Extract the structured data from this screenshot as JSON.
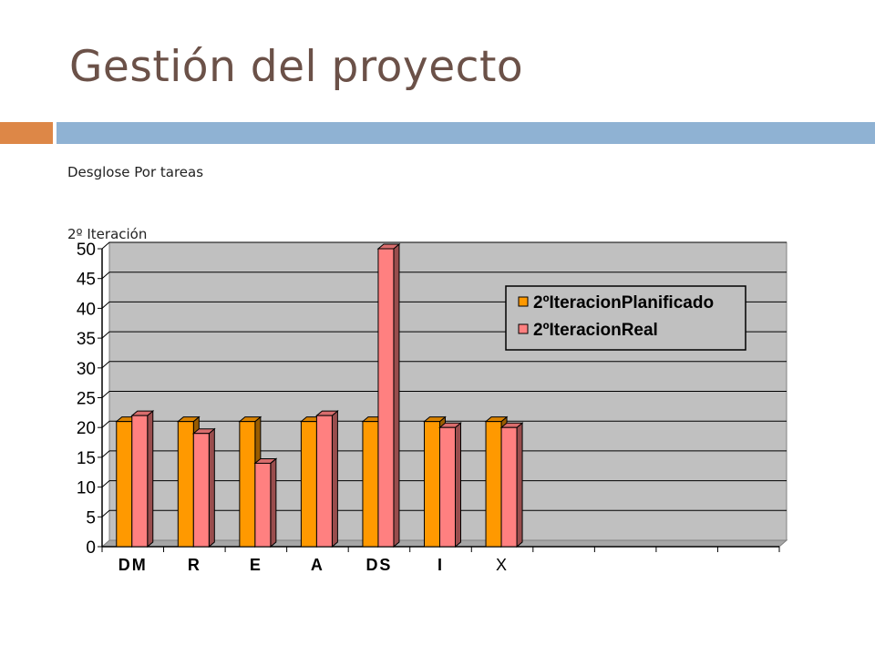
{
  "slide": {
    "title": "Gestión del proyecto",
    "subtitle": "Desglose Por tareas",
    "chart_caption": "2º Iteración"
  },
  "colors": {
    "title": "#6b5148",
    "accent_orange": "#dd8747",
    "accent_blue": "#8fb2d3",
    "plot_bg": "#c0c0c0",
    "series_planned": "#ff9900",
    "series_real": "#ff8080"
  },
  "chart_data": {
    "type": "bar",
    "title": "",
    "xlabel": "",
    "ylabel": "",
    "categories": [
      "DM",
      "R",
      "E",
      "A",
      "DS",
      "I",
      "X"
    ],
    "series": [
      {
        "name": "2ºIteracionPlanificado",
        "values": [
          21,
          21,
          21,
          21,
          21,
          21,
          21
        ]
      },
      {
        "name": "2ºIteracionReal",
        "values": [
          22,
          19,
          14,
          22,
          50,
          20,
          20
        ]
      }
    ],
    "ylim": [
      0,
      50
    ],
    "yticks": [
      0,
      5,
      10,
      15,
      20,
      25,
      30,
      35,
      40,
      45,
      50
    ],
    "grid": true,
    "legend": "top-right",
    "bar_style": "3d"
  }
}
